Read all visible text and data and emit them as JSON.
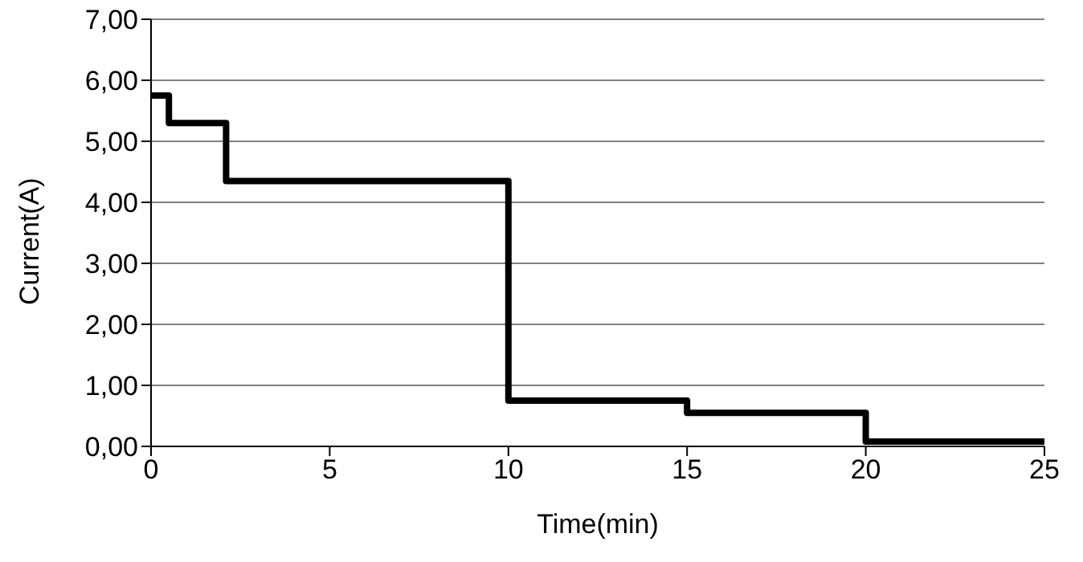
{
  "chart_data": {
    "type": "step",
    "xlabel": "Time(min)",
    "ylabel": "Current(A)",
    "x": [
      0,
      0.5,
      2.1,
      10,
      15,
      20,
      25
    ],
    "series": [
      {
        "color": "#000000",
        "values": [
          5.75,
          5.3,
          4.35,
          0.75,
          0.55,
          0.08,
          0.08
        ]
      }
    ],
    "xlim": [
      0,
      25
    ],
    "xticks": [
      0,
      5,
      10,
      15,
      20,
      25
    ],
    "ylim": [
      0,
      7
    ],
    "yticks": [
      {
        "value": 0,
        "label": "0,00"
      },
      {
        "value": 1,
        "label": "1,00"
      },
      {
        "value": 2,
        "label": "2,00"
      },
      {
        "value": 3,
        "label": "3,00"
      },
      {
        "value": 4,
        "label": "4,00"
      },
      {
        "value": 5,
        "label": "5,00"
      },
      {
        "value": 6,
        "label": "6,00"
      },
      {
        "value": 7,
        "label": "7,00"
      }
    ],
    "grid": "y",
    "legend": false,
    "marker": "none",
    "line_style": "solid"
  }
}
